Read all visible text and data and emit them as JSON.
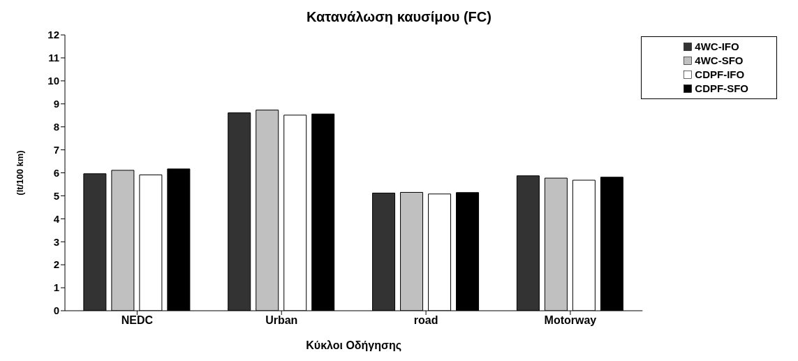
{
  "chart_data": {
    "type": "bar",
    "title": "Κατανάλωση καυσίμου (FC)",
    "xlabel": "Κύκλοι Οδήγησης",
    "ylabel": "(lt/100 km)",
    "categories": [
      "NEDC",
      "Urban",
      "road",
      "Motorway"
    ],
    "series": [
      {
        "name": "4WC-IFO",
        "color": "#333333",
        "values": [
          5.96,
          8.61,
          5.12,
          5.87
        ]
      },
      {
        "name": "4WC-SFO",
        "color": "#c0c0c0",
        "values": [
          6.11,
          8.73,
          5.15,
          5.77
        ]
      },
      {
        "name": "CDPF-IFO",
        "color": "#ffffff",
        "values": [
          5.91,
          8.51,
          5.08,
          5.68
        ]
      },
      {
        "name": "CDPF-SFO",
        "color": "#000000",
        "values": [
          6.17,
          8.56,
          5.14,
          5.81
        ]
      }
    ],
    "ylim": [
      0,
      12
    ],
    "yticks": [
      0,
      1,
      2,
      3,
      4,
      5,
      6,
      7,
      8,
      9,
      10,
      11,
      12
    ],
    "grid": false,
    "legend": "top right"
  }
}
